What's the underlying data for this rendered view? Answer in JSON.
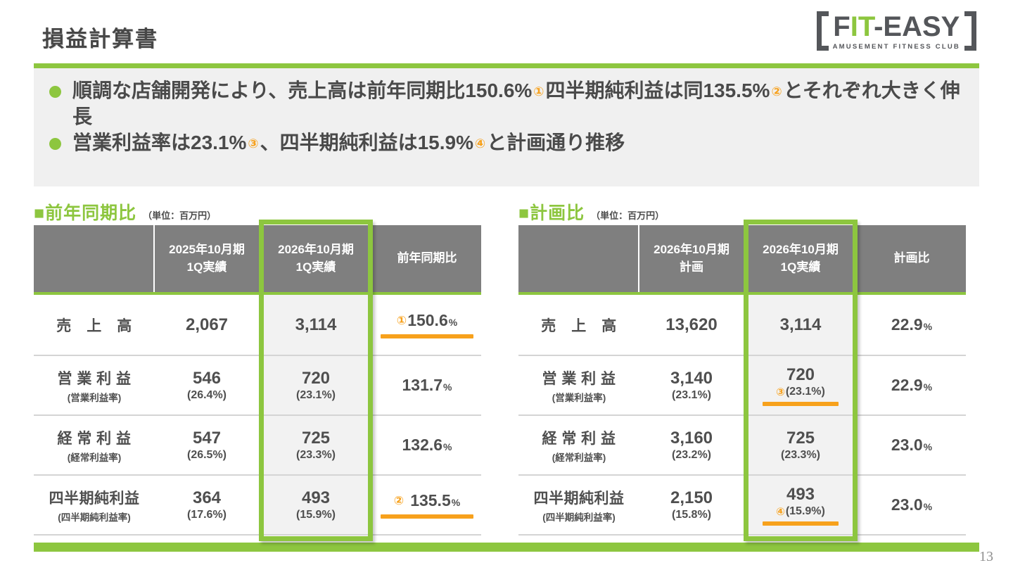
{
  "page": {
    "title": "損益計算書",
    "page_number": "13"
  },
  "colors": {
    "green": "#8dc63f",
    "orange": "#f7a11c",
    "header-gray": "#7f7f7f",
    "panel": "#f0f0f0",
    "cell-gray": "#f2f2f2",
    "separator": "#d4d4d4",
    "logo-dark": "#54565a"
  },
  "logo": {
    "part_f": "F",
    "part_it": "IT",
    "part_easy": "-EASY",
    "subtitle": "AMUSEMENT FITNESS CLUB"
  },
  "bullets": [
    {
      "segments": [
        {
          "t": "順調な店舗開発により、売上高は前年同期比150.6%",
          "s": "text"
        },
        {
          "t": "①",
          "s": "circled"
        },
        {
          "t": "四半期純利益は同135.5%",
          "s": "text"
        },
        {
          "t": "②",
          "s": "circled"
        },
        {
          "t": "とそれぞれ大きく伸長",
          "s": "text"
        }
      ]
    },
    {
      "segments": [
        {
          "t": "営業利益率は23.1%",
          "s": "text"
        },
        {
          "t": "③",
          "s": "circled"
        },
        {
          "t": "、四半期純利益は15.9%",
          "s": "text"
        },
        {
          "t": "④",
          "s": "circled"
        },
        {
          "t": "と計画通り推移",
          "s": "text"
        }
      ]
    }
  ],
  "tables": [
    {
      "title": "■前年同期比",
      "unit": "（単位：百万円）",
      "headers": [
        "",
        "2025年10月期\n1Q実績",
        "2026年10月期\n1Q実績",
        "前年同期比"
      ],
      "highlight_column": 2,
      "rows": [
        {
          "label": "売　上　高",
          "sublabel": "",
          "cells": [
            {
              "value": "2,067"
            },
            {
              "value": "3,114"
            },
            {
              "value": "150.6",
              "percent": true,
              "prefix": "①",
              "underline": true
            }
          ]
        },
        {
          "label": "営 業 利 益",
          "sublabel": "(営業利益率)",
          "cells": [
            {
              "value": "546",
              "sub": "(26.4%)"
            },
            {
              "value": "720",
              "sub": "(23.1%)"
            },
            {
              "value": "131.7",
              "percent": true
            }
          ]
        },
        {
          "label": "経 常 利 益",
          "sublabel": "(経常利益率)",
          "cells": [
            {
              "value": "547",
              "sub": "(26.5%)"
            },
            {
              "value": "725",
              "sub": "(23.3%)"
            },
            {
              "value": "132.6",
              "percent": true
            }
          ]
        },
        {
          "label": "四半期純利益",
          "sublabel": "(四半期純利益率)",
          "cells": [
            {
              "value": "364",
              "sub": "(17.6%)"
            },
            {
              "value": "493",
              "sub": "(15.9%)"
            },
            {
              "value": "135.5",
              "percent": true,
              "prefix": "②",
              "prefix_gap": true,
              "underline": true
            }
          ]
        }
      ]
    },
    {
      "title": "■計画比",
      "unit": "（単位：百万円）",
      "headers": [
        "",
        "2026年10月期\n計画",
        "2026年10月期\n1Q実績",
        "計画比"
      ],
      "highlight_column": 2,
      "rows": [
        {
          "label": "売　上　高",
          "sublabel": "",
          "cells": [
            {
              "value": "13,620"
            },
            {
              "value": "3,114"
            },
            {
              "value": "22.9",
              "percent": true
            }
          ]
        },
        {
          "label": "営 業 利 益",
          "sublabel": "(営業利益率)",
          "cells": [
            {
              "value": "3,140",
              "sub": "(23.1%)"
            },
            {
              "value": "720",
              "sub": "(23.1%)",
              "sub_prefix": "③",
              "underline": true
            },
            {
              "value": "22.9",
              "percent": true
            }
          ]
        },
        {
          "label": "経 常 利 益",
          "sublabel": "(経常利益率)",
          "cells": [
            {
              "value": "3,160",
              "sub": "(23.2%)"
            },
            {
              "value": "725",
              "sub": "(23.3%)"
            },
            {
              "value": "23.0",
              "percent": true
            }
          ]
        },
        {
          "label": "四半期純利益",
          "sublabel": "(四半期純利益率)",
          "cells": [
            {
              "value": "2,150",
              "sub": "(15.8%)"
            },
            {
              "value": "493",
              "sub": "(15.9%)",
              "sub_prefix": "④",
              "underline": true
            },
            {
              "value": "23.0",
              "percent": true
            }
          ]
        }
      ]
    }
  ]
}
